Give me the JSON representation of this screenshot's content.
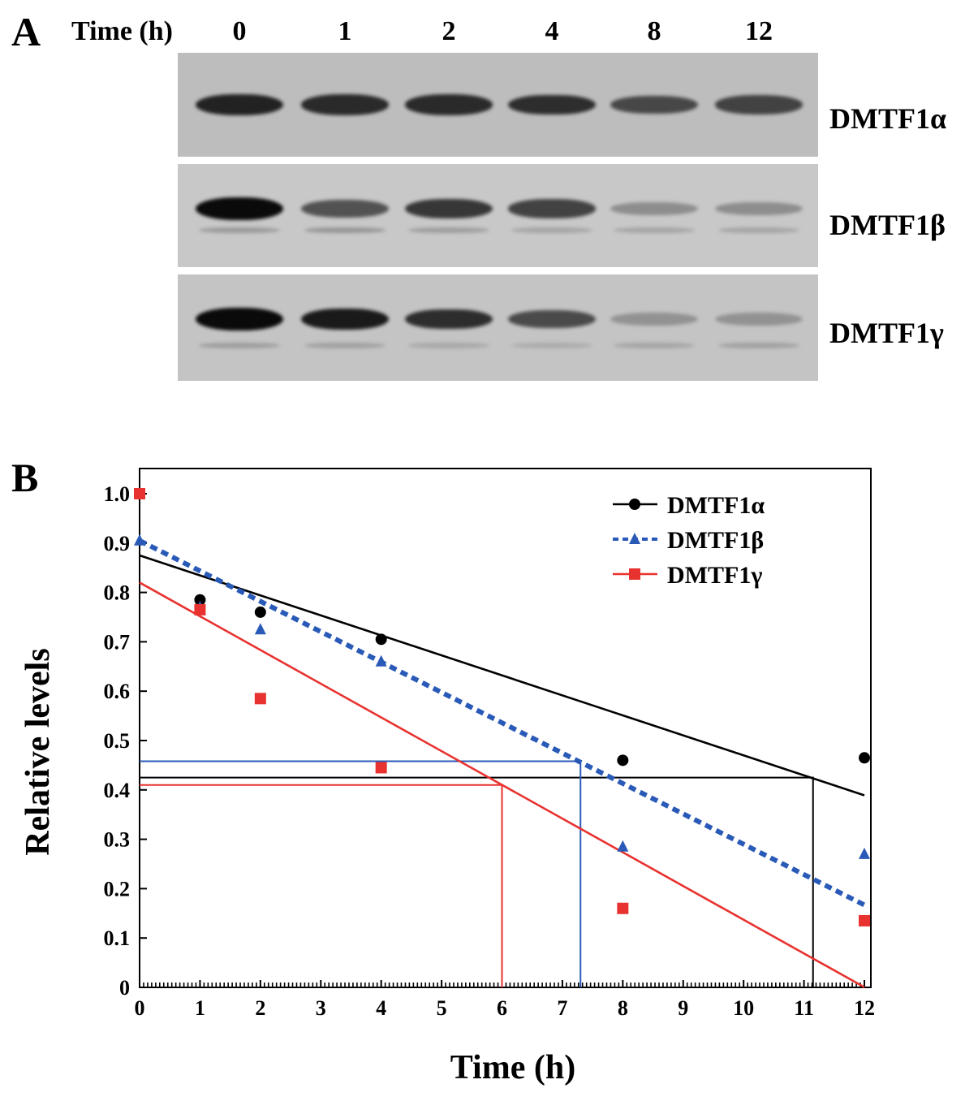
{
  "panel_a": {
    "label": "A",
    "time_title": "Time (h)",
    "time_points": [
      "0",
      "1",
      "2",
      "4",
      "8",
      "12"
    ],
    "blots": [
      {
        "protein": "DMTF1α",
        "intensity": [
          0.85,
          0.8,
          0.8,
          0.78,
          0.62,
          0.65
        ],
        "lower_band": [
          0,
          0,
          0,
          0,
          0,
          0
        ]
      },
      {
        "protein": "DMTF1β",
        "intensity": [
          1.0,
          0.55,
          0.72,
          0.65,
          0.18,
          0.18
        ],
        "lower_band": [
          0.2,
          0.22,
          0.18,
          0.14,
          0.14,
          0.14
        ]
      },
      {
        "protein": "DMTF1γ",
        "intensity": [
          1.0,
          0.9,
          0.78,
          0.6,
          0.15,
          0.15
        ],
        "lower_band": [
          0.18,
          0.16,
          0.12,
          0.1,
          0.14,
          0.16
        ]
      }
    ]
  },
  "chart_data": {
    "label": "B",
    "type": "scatter",
    "xlabel": "Time (h)",
    "ylabel": "Relative levels",
    "xlim": [
      0,
      12
    ],
    "ylim": [
      0,
      1.0
    ],
    "xticks": [
      "0",
      "1",
      "2",
      "3",
      "4",
      "5",
      "6",
      "7",
      "8",
      "9",
      "10",
      "11",
      "12"
    ],
    "yticks": [
      "0",
      "0.1",
      "0.2",
      "0.3",
      "0.4",
      "0.5",
      "0.6",
      "0.7",
      "0.8",
      "0.9",
      "1.0"
    ],
    "legend_position": "top-right",
    "series": [
      {
        "name": "DMTF1α",
        "color": "#000000",
        "marker": "circle",
        "line_style": "solid",
        "x": [
          0,
          1,
          2,
          4,
          8,
          12
        ],
        "y": [
          1.0,
          0.785,
          0.76,
          0.705,
          0.46,
          0.465
        ],
        "fit": {
          "intercept": 0.875,
          "slope": -0.0405
        },
        "half_life": {
          "x": 11.15,
          "y": 0.425
        }
      },
      {
        "name": "DMTF1β",
        "color": "#2a5ab8",
        "marker": "triangle",
        "line_style": "dashed",
        "x": [
          0,
          1,
          2,
          4,
          8,
          12
        ],
        "y": [
          0.905,
          0.77,
          0.725,
          0.66,
          0.285,
          0.27
        ],
        "fit": {
          "intercept": 0.905,
          "slope": -0.0615
        },
        "half_life": {
          "x": 7.3,
          "y": 0.458
        }
      },
      {
        "name": "DMTF1γ",
        "color": "#e8322f",
        "marker": "square",
        "line_style": "solid",
        "x": [
          0,
          1,
          2,
          4,
          8,
          12
        ],
        "y": [
          1.0,
          0.765,
          0.585,
          0.445,
          0.16,
          0.135
        ],
        "fit": {
          "intercept": 0.82,
          "slope": -0.0683
        },
        "half_life": {
          "x": 6.0,
          "y": 0.41
        }
      }
    ]
  }
}
